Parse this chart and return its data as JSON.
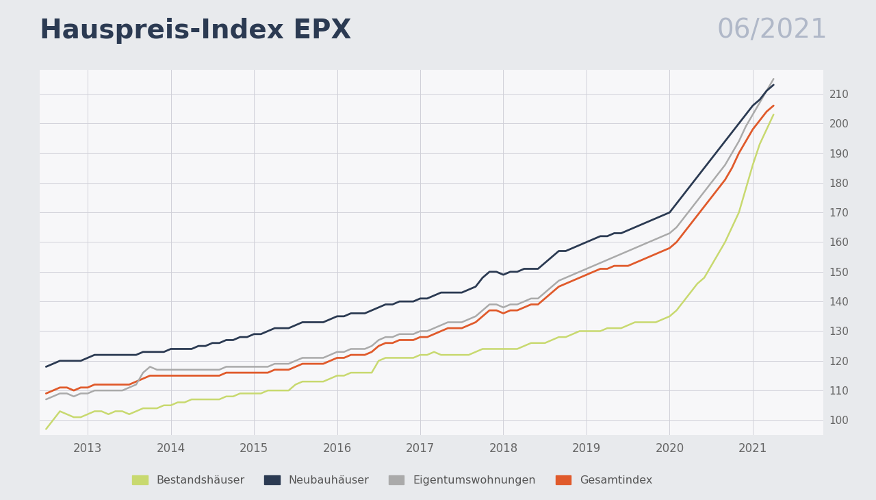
{
  "title": "Hauspreis-Index EPX",
  "date_label": "06/2021",
  "background_color": "#e8eaed",
  "plot_bg_color": "#f7f7f9",
  "grid_color": "#d0d0d8",
  "title_color": "#2b3a52",
  "date_color": "#b0b8c8",
  "ylim": [
    95,
    218
  ],
  "yticks": [
    100,
    110,
    120,
    130,
    140,
    150,
    160,
    170,
    180,
    190,
    200,
    210
  ],
  "series": {
    "Bestandshäuser": {
      "color": "#c8d96f",
      "lw": 1.8,
      "data": [
        97,
        100,
        103,
        102,
        101,
        101,
        102,
        103,
        103,
        102,
        103,
        103,
        102,
        103,
        104,
        104,
        104,
        105,
        105,
        106,
        106,
        107,
        107,
        107,
        107,
        107,
        108,
        108,
        109,
        109,
        109,
        109,
        110,
        110,
        110,
        110,
        112,
        113,
        113,
        113,
        113,
        114,
        115,
        115,
        116,
        116,
        116,
        116,
        120,
        121,
        121,
        121,
        121,
        121,
        122,
        122,
        123,
        122,
        122,
        122,
        122,
        122,
        123,
        124,
        124,
        124,
        124,
        124,
        124,
        125,
        126,
        126,
        126,
        127,
        128,
        128,
        129,
        130,
        130,
        130,
        130,
        131,
        131,
        131,
        132,
        133,
        133,
        133,
        133,
        134,
        135,
        137,
        140,
        143,
        146,
        148,
        152,
        156,
        160,
        165,
        170,
        178,
        186,
        193,
        198,
        203
      ]
    },
    "Neubauhäuser": {
      "color": "#2b3a52",
      "lw": 2.0,
      "data": [
        118,
        119,
        120,
        120,
        120,
        120,
        121,
        122,
        122,
        122,
        122,
        122,
        122,
        122,
        123,
        123,
        123,
        123,
        124,
        124,
        124,
        124,
        125,
        125,
        126,
        126,
        127,
        127,
        128,
        128,
        129,
        129,
        130,
        131,
        131,
        131,
        132,
        133,
        133,
        133,
        133,
        134,
        135,
        135,
        136,
        136,
        136,
        137,
        138,
        139,
        139,
        140,
        140,
        140,
        141,
        141,
        142,
        143,
        143,
        143,
        143,
        144,
        145,
        148,
        150,
        150,
        149,
        150,
        150,
        151,
        151,
        151,
        153,
        155,
        157,
        157,
        158,
        159,
        160,
        161,
        162,
        162,
        163,
        163,
        164,
        165,
        166,
        167,
        168,
        169,
        170,
        173,
        176,
        179,
        182,
        185,
        188,
        191,
        194,
        197,
        200,
        203,
        206,
        208,
        211,
        213
      ]
    },
    "Eigentumswohnungen": {
      "color": "#aaaaaa",
      "lw": 1.8,
      "data": [
        107,
        108,
        109,
        109,
        108,
        109,
        109,
        110,
        110,
        110,
        110,
        110,
        111,
        112,
        116,
        118,
        117,
        117,
        117,
        117,
        117,
        117,
        117,
        117,
        117,
        117,
        118,
        118,
        118,
        118,
        118,
        118,
        118,
        119,
        119,
        119,
        120,
        121,
        121,
        121,
        121,
        122,
        123,
        123,
        124,
        124,
        124,
        125,
        127,
        128,
        128,
        129,
        129,
        129,
        130,
        130,
        131,
        132,
        133,
        133,
        133,
        134,
        135,
        137,
        139,
        139,
        138,
        139,
        139,
        140,
        141,
        141,
        143,
        145,
        147,
        148,
        149,
        150,
        151,
        152,
        153,
        154,
        155,
        156,
        157,
        158,
        159,
        160,
        161,
        162,
        163,
        165,
        168,
        171,
        174,
        177,
        180,
        183,
        186,
        190,
        194,
        199,
        203,
        207,
        211,
        215
      ]
    },
    "Gesamtindex": {
      "color": "#e05a2b",
      "lw": 2.0,
      "data": [
        109,
        110,
        111,
        111,
        110,
        111,
        111,
        112,
        112,
        112,
        112,
        112,
        112,
        113,
        114,
        115,
        115,
        115,
        115,
        115,
        115,
        115,
        115,
        115,
        115,
        115,
        116,
        116,
        116,
        116,
        116,
        116,
        116,
        117,
        117,
        117,
        118,
        119,
        119,
        119,
        119,
        120,
        121,
        121,
        122,
        122,
        122,
        123,
        125,
        126,
        126,
        127,
        127,
        127,
        128,
        128,
        129,
        130,
        131,
        131,
        131,
        132,
        133,
        135,
        137,
        137,
        136,
        137,
        137,
        138,
        139,
        139,
        141,
        143,
        145,
        146,
        147,
        148,
        149,
        150,
        151,
        151,
        152,
        152,
        152,
        153,
        154,
        155,
        156,
        157,
        158,
        160,
        163,
        166,
        169,
        172,
        175,
        178,
        181,
        185,
        190,
        194,
        198,
        201,
        204,
        206
      ]
    }
  },
  "legend_entries": [
    "Bestandshäuser",
    "Neubauhäuser",
    "Eigentumswohnungen",
    "Gesamtindex"
  ],
  "legend_colors": [
    "#c8d96f",
    "#2b3a52",
    "#aaaaaa",
    "#e05a2b"
  ],
  "xtick_labels": [
    "2013",
    "2014",
    "2015",
    "2016",
    "2017",
    "2018",
    "2019",
    "2020",
    "2021"
  ],
  "n_points": 106,
  "start_year": 2012,
  "start_month": 7
}
